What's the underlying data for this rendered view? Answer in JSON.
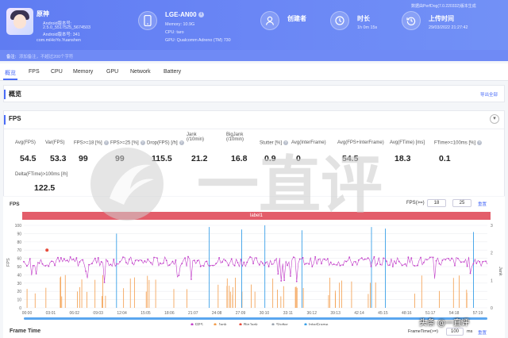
{
  "app": {
    "name": "原神",
    "android_version": "Android版本号:",
    "version": "2.5.0_5517525_5674503",
    "android_code": "Android版本号: 341",
    "package": "com.miHoYo.Yuanshen"
  },
  "device": {
    "model": "LGE-AN00",
    "memory": "Memory: 10.9G",
    "cpu": "CPU: taro",
    "gpu": "GPU: Qualcomm Adreno (TM) 730"
  },
  "creator": {
    "title": "创建者"
  },
  "duration": {
    "title": "时长",
    "value": "1h 0m 15s"
  },
  "upload": {
    "title": "上传时间",
    "value": "29/03/2022 21:27:42",
    "source": "数据由PerfDog(7.0.220332)版本生成"
  },
  "note": {
    "label": "备注:",
    "placeholder": "添加备注，不超过200个字符"
  },
  "tabs": [
    "概览",
    "FPS",
    "CPU",
    "Memory",
    "GPU",
    "Network",
    "Battery"
  ],
  "overview": {
    "title": "概览",
    "export": "导出全部"
  },
  "fps_section": {
    "title": "FPS",
    "stats": [
      {
        "label": "Avg(FPS)",
        "value": "54.5"
      },
      {
        "label": "Var(FPS)",
        "value": "53.3"
      },
      {
        "label": "FPS>=18 [%]",
        "value": "99"
      },
      {
        "label": "FPS>=25 [%]",
        "value": "99"
      },
      {
        "label": "Drop(FPS) [/h]",
        "value": "115.5"
      },
      {
        "label": "Jank\n(/10min)",
        "value": "21.2"
      },
      {
        "label": "BigJank\n(/10min)",
        "value": "16.8"
      },
      {
        "label": "Stutter [%]",
        "value": "0.9"
      },
      {
        "label": "Avg(InterFrame)",
        "value": "0"
      },
      {
        "label": "Avg(FPS+InterFrame)",
        "value": "54.5"
      },
      {
        "label": "Avg(FTime) [ms]",
        "value": "18.3"
      },
      {
        "label": "FTime>=100ms [%]",
        "value": "0.1"
      }
    ],
    "delta_label": "Delta(FTime)>100ms [/h]",
    "delta_value": "122.5"
  },
  "chart_panel": {
    "fps_label": "FPS",
    "threshold_label": "FPS(>=)",
    "threshold_1": "18",
    "threshold_2": "25",
    "reset": "重置",
    "label_bar": "label1",
    "frame_time_title": "Frame Time",
    "frame_time_input_label": "FrameTime(>=)",
    "frame_time_value": "100",
    "frame_time_unit": "ms",
    "frame_time_reset": "重置"
  },
  "watermark": {
    "text": "一直评",
    "byline": "头条 @一直评"
  },
  "chart_data": {
    "type": "line",
    "x_ticks": [
      "00:00",
      "03:01",
      "06:02",
      "09:03",
      "12:04",
      "15:05",
      "18:06",
      "21:07",
      "24:08",
      "27:09",
      "30:10",
      "33:11",
      "36:12",
      "39:13",
      "42:14",
      "45:15",
      "48:16",
      "51:17",
      "54:18",
      "57:19"
    ],
    "ylabel_left": "FPS",
    "ylabel_right": "Jank",
    "ylim_left": [
      0,
      100
    ],
    "y_ticks_left": [
      0,
      10,
      20,
      30,
      40,
      50,
      60,
      70,
      80,
      90,
      100
    ],
    "ylim_right": [
      0,
      3
    ],
    "y_ticks_right": [
      0,
      1,
      2,
      3
    ],
    "series": [
      {
        "name": "FPS",
        "color": "#c23fc9"
      },
      {
        "name": "Jank",
        "color": "#f39c4a"
      },
      {
        "name": "BigJank",
        "color": "#e74c3c"
      },
      {
        "name": "Stutter",
        "color": "#9aa3ad"
      },
      {
        "name": "InterFrame",
        "color": "#3aa0e8"
      }
    ],
    "fps_baseline": 60,
    "fps_typical_low": 50
  }
}
